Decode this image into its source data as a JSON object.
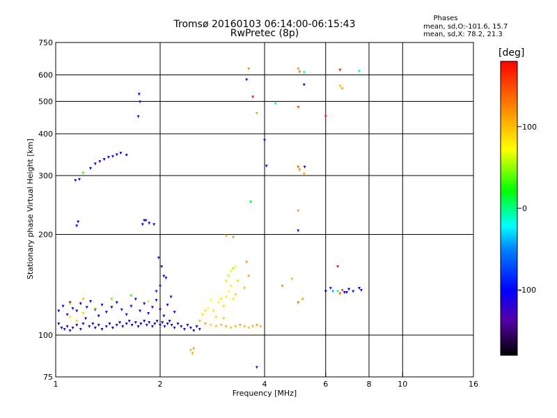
{
  "header": {
    "title_line1": "Tromsø 20160103 06:14:00-06:15:43",
    "title_line2": "RwPretec (8p)",
    "phases_title": "Phases",
    "phases_o": "mean, sd,O:-101.6, 15.7",
    "phases_x": "mean, sd,X:  78.2, 21.3"
  },
  "colorbar": {
    "label": "[deg]",
    "ticks": [
      {
        "v": 100,
        "label": "100"
      },
      {
        "v": 0,
        "label": "0"
      },
      {
        "v": -100,
        "label": "-100"
      }
    ],
    "range": [
      -180,
      180
    ]
  },
  "chart_data": {
    "type": "scatter",
    "xlabel": "Frequency [MHz]",
    "ylabel": "Stationary phase Virtual Height [km]",
    "xscale": "log",
    "yscale": "log",
    "xlim": [
      1,
      16
    ],
    "ylim": [
      75,
      750
    ],
    "xticks": [
      {
        "v": 1,
        "label": "1"
      },
      {
        "v": 2,
        "label": "2"
      },
      {
        "v": 4,
        "label": "4"
      },
      {
        "v": 6,
        "label": "6"
      },
      {
        "v": 8,
        "label": "8"
      },
      {
        "v": 10,
        "label": "10"
      },
      {
        "v": 16,
        "label": "16"
      }
    ],
    "yticks": [
      {
        "v": 75,
        "label": "75"
      },
      {
        "v": 100,
        "label": "100"
      },
      {
        "v": 200,
        "label": "200"
      },
      {
        "v": 300,
        "label": "300"
      },
      {
        "v": 400,
        "label": "400"
      },
      {
        "v": 500,
        "label": "500"
      },
      {
        "v": 600,
        "label": "600"
      },
      {
        "v": 750,
        "label": "750"
      }
    ],
    "grid_x": [
      2,
      4,
      6,
      8,
      10
    ],
    "grid_y": [
      100,
      200,
      300,
      400,
      500,
      600
    ],
    "points": [
      [
        1.02,
        108,
        -110
      ],
      [
        1.04,
        105,
        -105
      ],
      [
        1.06,
        104,
        -95
      ],
      [
        1.08,
        106,
        -110
      ],
      [
        1.1,
        103,
        -100
      ],
      [
        1.12,
        105,
        -115
      ],
      [
        1.15,
        107,
        -105
      ],
      [
        1.18,
        104,
        -100
      ],
      [
        1.2,
        108,
        -110
      ],
      [
        1.22,
        112,
        -120
      ],
      [
        1.25,
        106,
        -100
      ],
      [
        1.28,
        108,
        -95
      ],
      [
        1.3,
        105,
        -105
      ],
      [
        1.33,
        107,
        -110
      ],
      [
        1.36,
        104,
        -100
      ],
      [
        1.4,
        106,
        -115
      ],
      [
        1.43,
        108,
        -105
      ],
      [
        1.46,
        105,
        -100
      ],
      [
        1.5,
        107,
        -110
      ],
      [
        1.53,
        109,
        -105
      ],
      [
        1.56,
        106,
        -100
      ],
      [
        1.6,
        108,
        -110
      ],
      [
        1.63,
        110,
        -115
      ],
      [
        1.66,
        107,
        -105
      ],
      [
        1.7,
        109,
        -100
      ],
      [
        1.73,
        106,
        -110
      ],
      [
        1.76,
        108,
        -105
      ],
      [
        1.8,
        110,
        -100
      ],
      [
        1.83,
        107,
        -110
      ],
      [
        1.86,
        109,
        -115
      ],
      [
        1.9,
        106,
        -105
      ],
      [
        1.93,
        108,
        -100
      ],
      [
        1.96,
        110,
        -110
      ],
      [
        2.0,
        107,
        -105
      ],
      [
        2.03,
        109,
        -100
      ],
      [
        2.06,
        106,
        -110
      ],
      [
        2.1,
        108,
        -105
      ],
      [
        2.13,
        110,
        -100
      ],
      [
        2.16,
        107,
        -110
      ],
      [
        2.2,
        105,
        -105
      ],
      [
        2.25,
        108,
        -100
      ],
      [
        2.3,
        106,
        -110
      ],
      [
        2.35,
        104,
        -105
      ],
      [
        2.4,
        107,
        -100
      ],
      [
        2.45,
        105,
        -110
      ],
      [
        2.5,
        103,
        -105
      ],
      [
        2.55,
        106,
        -100
      ],
      [
        2.6,
        104,
        -110
      ],
      [
        1.02,
        118,
        -110
      ],
      [
        1.05,
        122,
        -100
      ],
      [
        1.08,
        115,
        -115
      ],
      [
        1.1,
        125,
        -105
      ],
      [
        1.12,
        120,
        -120
      ],
      [
        1.15,
        118,
        -100
      ],
      [
        1.18,
        124,
        -110
      ],
      [
        1.2,
        116,
        -105
      ],
      [
        1.23,
        121,
        -115
      ],
      [
        1.26,
        126,
        -100
      ],
      [
        1.3,
        119,
        -110
      ],
      [
        1.33,
        114,
        -105
      ],
      [
        1.36,
        123,
        -115
      ],
      [
        1.4,
        117,
        -110
      ],
      [
        1.45,
        121,
        -105
      ],
      [
        1.5,
        125,
        -100
      ],
      [
        1.55,
        119,
        -110
      ],
      [
        1.6,
        115,
        -115
      ],
      [
        1.65,
        122,
        -105
      ],
      [
        1.7,
        128,
        -110
      ],
      [
        1.75,
        118,
        -100
      ],
      [
        1.8,
        124,
        -115
      ],
      [
        1.85,
        116,
        -105
      ],
      [
        1.9,
        121,
        -110
      ],
      [
        1.95,
        127,
        -100
      ],
      [
        2.0,
        119,
        -115
      ],
      [
        2.05,
        114,
        -105
      ],
      [
        2.1,
        123,
        -110
      ],
      [
        2.15,
        130,
        -120
      ],
      [
        2.2,
        117,
        -100
      ],
      [
        1.95,
        135,
        -90
      ],
      [
        2.0,
        140,
        -95
      ],
      [
        2.05,
        150,
        -120
      ],
      [
        2.02,
        160,
        -140
      ],
      [
        1.98,
        170,
        -130
      ],
      [
        2.08,
        148,
        -100
      ],
      [
        1.1,
        113,
        80
      ],
      [
        1.15,
        110,
        90
      ],
      [
        1.2,
        116,
        70
      ],
      [
        1.3,
        120,
        60
      ],
      [
        1.45,
        128,
        40
      ],
      [
        1.65,
        131,
        30
      ],
      [
        1.85,
        126,
        60
      ],
      [
        1.1,
        124,
        110
      ],
      [
        1.2,
        128,
        100
      ],
      [
        2.6,
        110,
        100
      ],
      [
        2.7,
        108,
        110
      ],
      [
        2.8,
        107,
        90
      ],
      [
        2.9,
        106,
        95
      ],
      [
        3.0,
        107,
        100
      ],
      [
        3.1,
        106,
        105
      ],
      [
        3.2,
        105,
        95
      ],
      [
        3.3,
        106,
        100
      ],
      [
        3.4,
        107,
        110
      ],
      [
        3.5,
        106,
        105
      ],
      [
        3.6,
        105,
        95
      ],
      [
        3.7,
        106,
        100
      ],
      [
        3.8,
        107,
        110
      ],
      [
        3.9,
        106,
        100
      ],
      [
        2.65,
        115,
        80
      ],
      [
        2.75,
        120,
        70
      ],
      [
        2.85,
        118,
        60
      ],
      [
        2.95,
        125,
        75
      ],
      [
        3.05,
        122,
        85
      ],
      [
        3.1,
        130,
        65
      ],
      [
        3.15,
        135,
        70
      ],
      [
        3.2,
        140,
        75
      ],
      [
        3.25,
        128,
        80
      ],
      [
        3.3,
        132,
        90
      ],
      [
        3.1,
        145,
        60
      ],
      [
        3.15,
        150,
        55
      ],
      [
        3.2,
        155,
        65
      ],
      [
        3.25,
        158,
        50
      ],
      [
        3.3,
        160,
        70
      ],
      [
        3.05,
        112,
        95
      ],
      [
        2.9,
        113,
        90
      ],
      [
        2.7,
        118,
        85
      ],
      [
        3.0,
        128,
        80
      ],
      [
        2.8,
        127,
        70
      ],
      [
        3.35,
        145,
        90
      ],
      [
        3.5,
        138,
        100
      ],
      [
        3.6,
        150,
        110
      ],
      [
        3.55,
        165,
        120
      ],
      [
        3.1,
        198,
        110
      ],
      [
        3.25,
        196,
        120
      ],
      [
        2.45,
        90,
        100
      ],
      [
        2.5,
        91,
        110
      ],
      [
        2.48,
        88,
        105
      ],
      [
        1.14,
        290,
        -110
      ],
      [
        1.17,
        292,
        -115
      ],
      [
        1.2,
        305,
        30
      ],
      [
        1.26,
        315,
        -100
      ],
      [
        1.3,
        325,
        -105
      ],
      [
        1.34,
        330,
        -110
      ],
      [
        1.38,
        335,
        -100
      ],
      [
        1.42,
        340,
        -115
      ],
      [
        1.46,
        342,
        -105
      ],
      [
        1.5,
        346,
        -110
      ],
      [
        1.54,
        350,
        -120
      ],
      [
        1.6,
        345,
        -100
      ],
      [
        1.16,
        218,
        -100
      ],
      [
        1.15,
        212,
        -110
      ],
      [
        1.78,
        214,
        -105
      ],
      [
        1.82,
        220,
        -115
      ],
      [
        1.86,
        216,
        -100
      ],
      [
        1.92,
        214,
        -110
      ],
      [
        1.8,
        220,
        -120
      ],
      [
        1.73,
        450,
        -110
      ],
      [
        1.75,
        498,
        -120
      ],
      [
        1.74,
        525,
        -100
      ],
      [
        3.55,
        580,
        -120
      ],
      [
        3.6,
        625,
        120
      ],
      [
        3.7,
        515,
        170
      ],
      [
        3.8,
        460,
        110
      ],
      [
        3.65,
        250,
        10
      ],
      [
        4.0,
        382,
        -120
      ],
      [
        4.05,
        320,
        -120
      ],
      [
        4.3,
        492,
        -5
      ],
      [
        5.0,
        625,
        120
      ],
      [
        5.05,
        612,
        130
      ],
      [
        5.0,
        480,
        150
      ],
      [
        5.2,
        610,
        -10
      ],
      [
        5.2,
        560,
        -110
      ],
      [
        5.22,
        318,
        -115
      ],
      [
        5.0,
        318,
        140
      ],
      [
        5.05,
        312,
        120
      ],
      [
        5.2,
        303,
        110
      ],
      [
        5.0,
        235,
        110
      ],
      [
        5.0,
        205,
        -110
      ],
      [
        6.0,
        450,
        170
      ],
      [
        6.6,
        620,
        170
      ],
      [
        6.7,
        545,
        110
      ],
      [
        6.6,
        555,
        100
      ],
      [
        7.5,
        615,
        -10
      ],
      [
        6.0,
        135,
        -100
      ],
      [
        6.2,
        138,
        -90
      ],
      [
        6.3,
        135,
        -40
      ],
      [
        6.5,
        135,
        -10
      ],
      [
        6.7,
        136,
        150
      ],
      [
        6.6,
        133,
        140
      ],
      [
        6.8,
        134,
        -110
      ],
      [
        7.0,
        137,
        -100
      ],
      [
        7.2,
        135,
        -95
      ],
      [
        7.5,
        138,
        -100
      ],
      [
        7.6,
        136,
        -110
      ],
      [
        6.5,
        160,
        170
      ],
      [
        6.9,
        134,
        -100
      ],
      [
        5.0,
        125,
        130
      ],
      [
        5.15,
        128,
        110
      ],
      [
        3.8,
        80,
        -140
      ],
      [
        4.5,
        140,
        120
      ],
      [
        4.8,
        147,
        100
      ]
    ]
  }
}
